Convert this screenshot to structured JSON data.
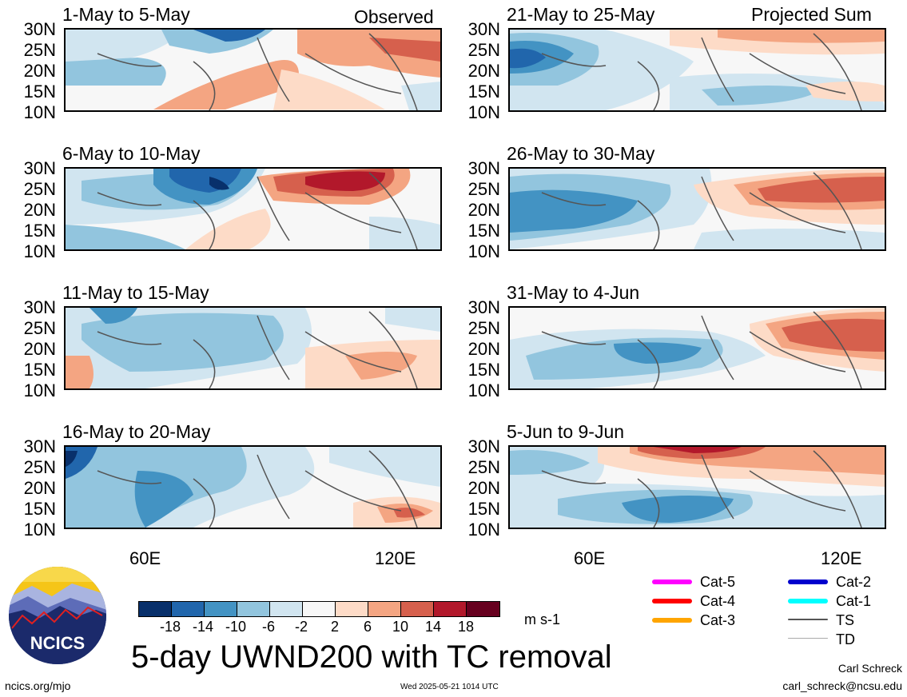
{
  "panels_left": [
    {
      "title": "1-May to 5-May",
      "tag": "Observed"
    },
    {
      "title": "6-May to 10-May",
      "tag": ""
    },
    {
      "title": "11-May to 15-May",
      "tag": ""
    },
    {
      "title": "16-May to 20-May",
      "tag": ""
    }
  ],
  "panels_right": [
    {
      "title": "21-May to 25-May",
      "tag": "Projected Sum"
    },
    {
      "title": "26-May to 30-May",
      "tag": ""
    },
    {
      "title": "31-May to 4-Jun",
      "tag": ""
    },
    {
      "title": "5-Jun to 9-Jun",
      "tag": ""
    }
  ],
  "lat_labels": [
    "30N",
    "25N",
    "20N",
    "15N",
    "10N"
  ],
  "lon_labels": [
    "60E",
    "120E"
  ],
  "colorbar": {
    "labels": [
      "-18",
      "-14",
      "-10",
      "-6",
      "-2",
      "2",
      "6",
      "10",
      "14",
      "18"
    ],
    "colors": [
      "#08306b",
      "#2166ac",
      "#4393c3",
      "#92c5de",
      "#d1e5f0",
      "#f7f7f7",
      "#fddbc7",
      "#f4a582",
      "#d6604d",
      "#b2182b",
      "#67001f"
    ],
    "units": "m s-1"
  },
  "legend": [
    {
      "label": "Cat-5",
      "color": "#ff00ff"
    },
    {
      "label": "Cat-4",
      "color": "#ff0000"
    },
    {
      "label": "Cat-3",
      "color": "#ffa500"
    },
    {
      "label": "Cat-2",
      "color": "#0000cd"
    },
    {
      "label": "Cat-1",
      "color": "#00ffff"
    },
    {
      "label": "TS",
      "color": "#555555"
    },
    {
      "label": "TD",
      "color": "#aaaaaa"
    }
  ],
  "main_title": "5-day UWND200 with TC removal",
  "logo_text": "NCICS",
  "footer": {
    "url": "ncics.org/mjo",
    "timestamp": "Wed 2025-05-21 1014 UTC",
    "author": "Carl Schreck",
    "email": "carl_schreck@ncsu.edu"
  }
}
